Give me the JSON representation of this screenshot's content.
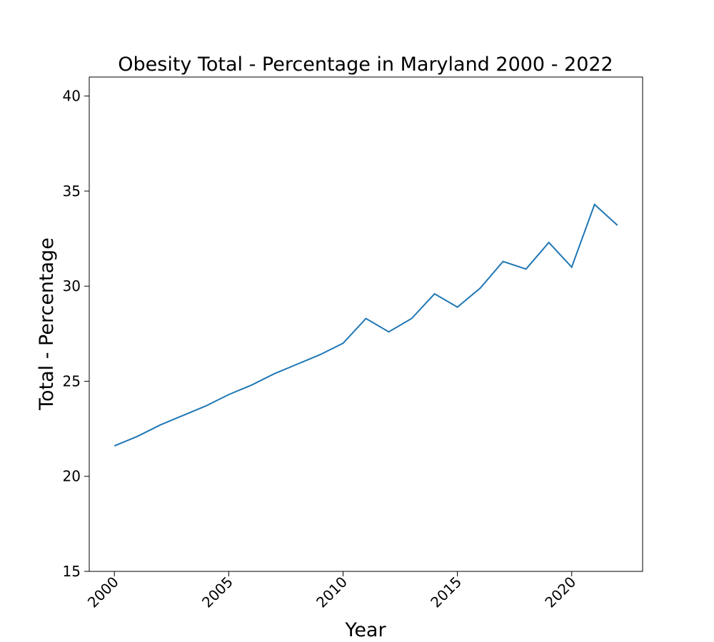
{
  "chart_data": {
    "type": "line",
    "title": "Obesity Total - Percentage in Maryland 2000 - 2022",
    "xlabel": "Year",
    "ylabel": "Total - Percentage",
    "xlim": [
      1998.9,
      2023.1
    ],
    "ylim": [
      15,
      41
    ],
    "x_ticks": [
      2000,
      2005,
      2010,
      2015,
      2020
    ],
    "y_ticks": [
      15,
      20,
      25,
      30,
      35,
      40
    ],
    "grid": false,
    "series": [
      {
        "color": "#1f77b4",
        "x": [
          2000,
          2001,
          2002,
          2003,
          2004,
          2005,
          2006,
          2007,
          2008,
          2009,
          2010,
          2011,
          2012,
          2013,
          2014,
          2015,
          2016,
          2017,
          2018,
          2019,
          2020,
          2021,
          2022
        ],
        "y": [
          21.6,
          22.1,
          22.7,
          23.2,
          23.7,
          24.3,
          24.8,
          25.4,
          25.9,
          26.4,
          27.0,
          28.3,
          27.6,
          28.3,
          29.6,
          28.9,
          29.9,
          31.3,
          30.9,
          32.3,
          31.0,
          34.3,
          33.2
        ]
      }
    ]
  }
}
